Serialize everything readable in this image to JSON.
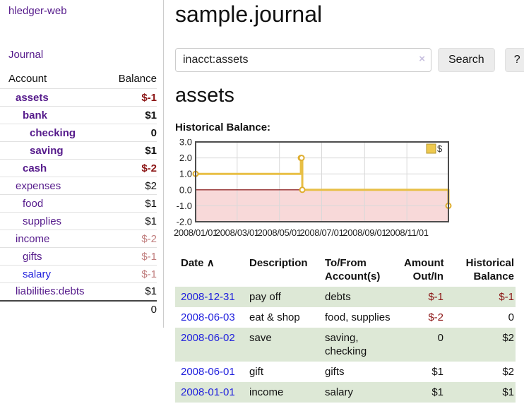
{
  "sidebar": {
    "brand": "hledger-web",
    "journal_link": "Journal",
    "accounts_table": {
      "headers": {
        "account": "Account",
        "balance": "Balance"
      },
      "rows": [
        {
          "label": "assets",
          "depth": 1,
          "balance": "$-1",
          "current": true,
          "balance_tone": "negative",
          "link_tone": "visited"
        },
        {
          "label": "bank",
          "depth": 2,
          "balance": "$1",
          "current": true,
          "balance_tone": "positive",
          "link_tone": "visited"
        },
        {
          "label": "checking",
          "depth": 3,
          "balance": "0",
          "current": true,
          "balance_tone": "positive",
          "link_tone": "visited"
        },
        {
          "label": "saving",
          "depth": 3,
          "balance": "$1",
          "current": true,
          "balance_tone": "positive",
          "link_tone": "visited"
        },
        {
          "label": "cash",
          "depth": 2,
          "balance": "$-2",
          "current": true,
          "balance_tone": "negative",
          "link_tone": "visited"
        },
        {
          "label": "expenses",
          "depth": 1,
          "balance": "$2",
          "current": false,
          "balance_tone": "positive",
          "link_tone": "visited"
        },
        {
          "label": "food",
          "depth": 2,
          "balance": "$1",
          "current": false,
          "balance_tone": "positive",
          "link_tone": "visited"
        },
        {
          "label": "supplies",
          "depth": 2,
          "balance": "$1",
          "current": false,
          "balance_tone": "positive",
          "link_tone": "visited"
        },
        {
          "label": "income",
          "depth": 1,
          "balance": "$-2",
          "current": false,
          "balance_tone": "negative-muted",
          "link_tone": "visited"
        },
        {
          "label": "gifts",
          "depth": 2,
          "balance": "$-1",
          "current": false,
          "balance_tone": "negative-muted",
          "link_tone": "visited"
        },
        {
          "label": "salary",
          "depth": 2,
          "balance": "$-1",
          "current": false,
          "balance_tone": "negative-muted",
          "link_tone": "unvisited"
        },
        {
          "label": "liabilities:debts",
          "depth": 1,
          "balance": "$1",
          "current": false,
          "balance_tone": "positive",
          "link_tone": "visited"
        }
      ],
      "total": "0"
    }
  },
  "header": {
    "title": "sample.journal"
  },
  "search": {
    "query": "inacct:assets",
    "clear_icon": "×",
    "button_label": "Search",
    "help_label": "?"
  },
  "account_page": {
    "heading": "assets",
    "chart_title": "Historical Balance:"
  },
  "chart_data": {
    "type": "line",
    "step": true,
    "title": "Historical Balance:",
    "series": [
      {
        "name": "$",
        "color": "#e8bf45",
        "points": [
          [
            "2008-01-01",
            1
          ],
          [
            "2008-06-01",
            2
          ],
          [
            "2008-06-02",
            2
          ],
          [
            "2008-06-03",
            0
          ],
          [
            "2008-12-31",
            -1
          ]
        ]
      }
    ],
    "x_domain": [
      "2008-01-01",
      "2008-12-31"
    ],
    "x_ticks": [
      "2008/01/01",
      "2008/03/01",
      "2008/05/01",
      "2008/07/01",
      "2008/09/01",
      "2008/11/01"
    ],
    "y_ticks": [
      3,
      2,
      1,
      0,
      -1,
      -2
    ],
    "y_tick_labels": [
      "3.0",
      "2.0",
      "1.0",
      "0.0",
      "-1.0",
      "-2.0"
    ],
    "ylim": [
      -2,
      3
    ],
    "grid": true,
    "legend": {
      "label": "$",
      "position": "top-right"
    },
    "negative_region_color": "#f8d9d9",
    "zero_line_color": "#7d0000"
  },
  "transactions": {
    "headers": {
      "date": "Date",
      "sort_icon": "∧",
      "description": "Description",
      "accounts": "To/From\nAccount(s)",
      "amount": "Amount\nOut/In",
      "balance": "Historical\nBalance"
    },
    "rows": [
      {
        "date": "2008-12-31",
        "description": "pay off",
        "accounts": "debts",
        "amount": "$-1",
        "balance": "$-1",
        "amount_tone": "negative",
        "balance_tone": "negative",
        "stripe": true
      },
      {
        "date": "2008-06-03",
        "description": "eat & shop",
        "accounts": "food, supplies",
        "amount": "$-2",
        "balance": "0",
        "amount_tone": "negative",
        "balance_tone": "positive",
        "stripe": false
      },
      {
        "date": "2008-06-02",
        "description": "save",
        "accounts": "saving, checking",
        "amount": "0",
        "balance": "$2",
        "amount_tone": "positive",
        "balance_tone": "positive",
        "stripe": true
      },
      {
        "date": "2008-06-01",
        "description": "gift",
        "accounts": "gifts",
        "amount": "$1",
        "balance": "$2",
        "amount_tone": "positive",
        "balance_tone": "positive",
        "stripe": false
      },
      {
        "date": "2008-01-01",
        "description": "income",
        "accounts": "salary",
        "amount": "$1",
        "balance": "$1",
        "amount_tone": "positive",
        "balance_tone": "positive",
        "stripe": true
      }
    ]
  },
  "colors": {
    "link_visited": "#551a8b",
    "link_unvisited": "#2222dd",
    "negative_strong": "#8b1414",
    "negative_muted": "#c17f7f",
    "row_stripe_green": "#dde8d6",
    "chart_line_gold": "#e8bf45",
    "chart_negative_fill": "#f8d9d9",
    "chart_zero_line": "#7d0000",
    "chart_border": "#4d4d4d"
  }
}
